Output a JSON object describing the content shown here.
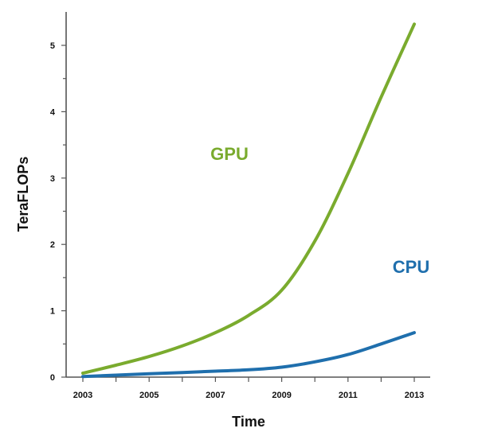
{
  "chart_data": {
    "type": "line",
    "title": "",
    "xlabel": "Time",
    "ylabel": "TeraFLOPs",
    "xlim": [
      2002.5,
      2013.5
    ],
    "ylim": [
      0,
      5.5
    ],
    "x_ticks": [
      2003,
      2005,
      2007,
      2009,
      2011,
      2013
    ],
    "y_ticks": [
      0,
      1,
      2,
      3,
      4,
      5
    ],
    "grid": false,
    "series": [
      {
        "name": "GPU",
        "color": "#7aab2e",
        "x": [
          2003,
          2004,
          2005,
          2006,
          2007,
          2008,
          2009,
          2010,
          2011,
          2012,
          2013
        ],
        "y": [
          0.06,
          0.18,
          0.31,
          0.47,
          0.67,
          0.93,
          1.31,
          2.05,
          3.07,
          4.22,
          5.32
        ]
      },
      {
        "name": "CPU",
        "color": "#1f6fad",
        "x": [
          2003,
          2004,
          2005,
          2006,
          2007,
          2008,
          2009,
          2010,
          2011,
          2012,
          2013
        ],
        "y": [
          0.01,
          0.03,
          0.05,
          0.07,
          0.09,
          0.11,
          0.15,
          0.23,
          0.34,
          0.5,
          0.67
        ]
      }
    ]
  }
}
